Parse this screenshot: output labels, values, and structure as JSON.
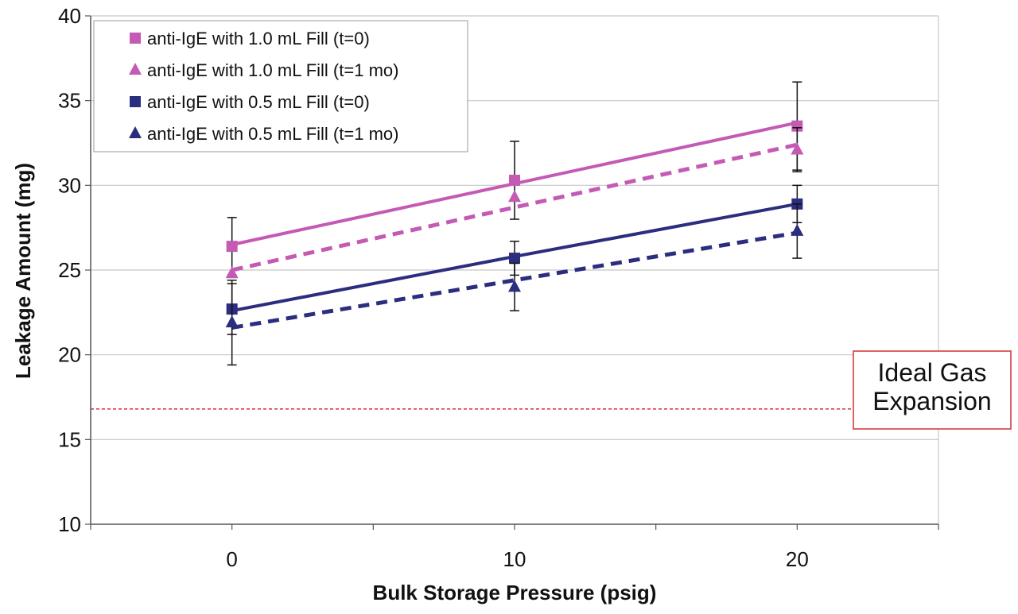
{
  "chart_data": {
    "type": "line",
    "title": "",
    "xlabel": "Bulk Storage Pressure (psig)",
    "ylabel": "Leakage Amount (mg)",
    "x": [
      0,
      10,
      20
    ],
    "xlim": [
      -5,
      25
    ],
    "ylim": [
      10,
      40
    ],
    "x_ticks": [
      0,
      10,
      20
    ],
    "y_ticks": [
      10,
      15,
      20,
      25,
      30,
      35,
      40
    ],
    "grid": "horizontal",
    "legend_position": "top-left",
    "series": [
      {
        "name": "anti-IgE with 1.0 mL Fill (t=0)",
        "marker": "square",
        "line_style": "solid",
        "color": "#c45ab4",
        "values": [
          26.4,
          30.3,
          33.5
        ],
        "error": [
          1.7,
          2.3,
          2.6
        ],
        "trend": [
          26.5,
          30.1,
          33.7
        ]
      },
      {
        "name": "anti-IgE with 1.0 mL Fill (t=1 mo)",
        "marker": "triangle",
        "line_style": "dashed",
        "color": "#c45ab4",
        "values": [
          24.8,
          29.3,
          32.1
        ],
        "error": [
          0.0,
          0.0,
          1.3
        ],
        "trend": [
          25.0,
          28.7,
          32.4
        ]
      },
      {
        "name": "anti-IgE with 0.5 mL Fill (t=0)",
        "marker": "square",
        "line_style": "solid",
        "color": "#2b2d7f",
        "values": [
          22.7,
          25.7,
          28.9
        ],
        "error": [
          1.5,
          1.0,
          1.1
        ],
        "trend": [
          22.6,
          25.8,
          28.9
        ]
      },
      {
        "name": "anti-IgE with 0.5 mL Fill (t=1 mo)",
        "marker": "triangle",
        "line_style": "dashed",
        "color": "#2b2d7f",
        "values": [
          21.9,
          24.0,
          27.3
        ],
        "error": [
          2.5,
          1.4,
          1.6
        ],
        "trend": [
          21.6,
          24.4,
          27.2
        ]
      }
    ],
    "reference_line": {
      "y": 16.8,
      "color": "#e03030",
      "line_style": "dashed",
      "label_lines": [
        "Ideal Gas",
        "Expansion"
      ]
    }
  }
}
